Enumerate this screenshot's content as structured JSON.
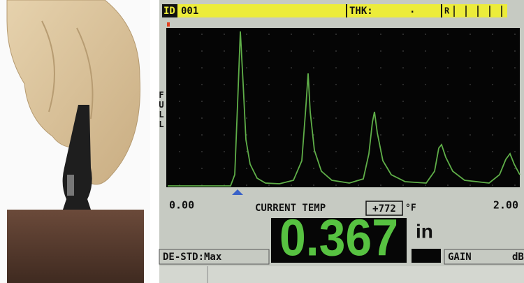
{
  "header": {
    "id_label": "ID",
    "id_value": "001",
    "thk_label": "THK:",
    "thk_value": ".",
    "flag": "R"
  },
  "waveform": {
    "side_label": "FULL",
    "x_start": "0.00",
    "x_end": "2.00"
  },
  "temperature": {
    "label": "CURRENT TEMP",
    "value": "+772",
    "unit": "°F"
  },
  "reading": {
    "value": "0.367",
    "unit": "in"
  },
  "status": {
    "mode": "DE-STD:Max",
    "gain_label": "GAIN",
    "gain_unit": "dB"
  }
}
